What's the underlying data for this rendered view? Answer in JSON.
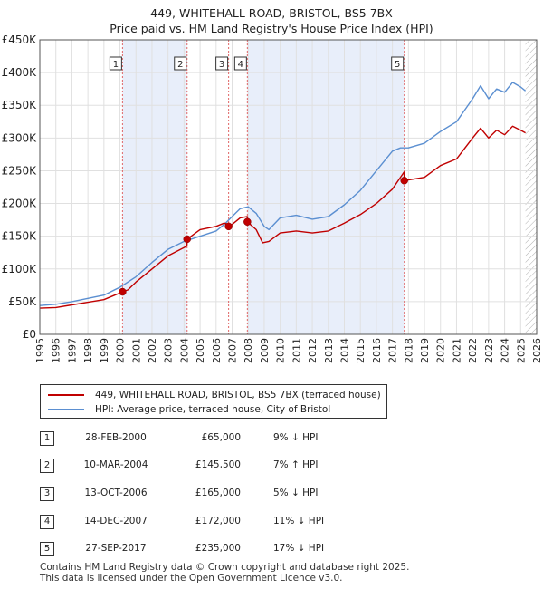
{
  "title_line1": "449, WHITEHALL ROAD, BRISTOL, BS5 7BX",
  "title_line2": "Price paid vs. HM Land Registry's House Price Index (HPI)",
  "colors": {
    "property": "#c00000",
    "hpi": "#5b8fd1",
    "shade": "#e8eefa",
    "grid": "#e0e0e0",
    "vline": "#e06666"
  },
  "legend": {
    "property_label": "449, WHITEHALL ROAD, BRISTOL, BS5 7BX (terraced house)",
    "hpi_label": "HPI: Average price, terraced house, City of Bristol"
  },
  "transactions": [
    {
      "num": "1",
      "date": "28-FEB-2000",
      "price": "£65,000",
      "hpi": "9% ↓ HPI"
    },
    {
      "num": "2",
      "date": "10-MAR-2004",
      "price": "£145,500",
      "hpi": "7% ↑ HPI"
    },
    {
      "num": "3",
      "date": "13-OCT-2006",
      "price": "£165,000",
      "hpi": "5% ↓ HPI"
    },
    {
      "num": "4",
      "date": "14-DEC-2007",
      "price": "£172,000",
      "hpi": "11% ↓ HPI"
    },
    {
      "num": "5",
      "date": "27-SEP-2017",
      "price": "£235,000",
      "hpi": "17% ↓ HPI"
    }
  ],
  "footer_line1": "Contains HM Land Registry data © Crown copyright and database right 2025.",
  "footer_line2": "This data is licensed under the Open Government Licence v3.0.",
  "chart_data": {
    "type": "line",
    "title": "449, WHITEHALL ROAD, BRISTOL, BS5 7BX",
    "subtitle": "Price paid vs. HM Land Registry's House Price Index (HPI)",
    "xlabel": "",
    "ylabel": "",
    "xlim": [
      1995,
      2026
    ],
    "ylim": [
      0,
      450000
    ],
    "yticks": [
      0,
      50000,
      100000,
      150000,
      200000,
      250000,
      300000,
      350000,
      400000,
      450000
    ],
    "ytick_labels": [
      "£0",
      "£50K",
      "£100K",
      "£150K",
      "£200K",
      "£250K",
      "£300K",
      "£350K",
      "£400K",
      "£450K"
    ],
    "xticks": [
      1995,
      1996,
      1997,
      1998,
      1999,
      2000,
      2001,
      2002,
      2003,
      2004,
      2005,
      2006,
      2007,
      2008,
      2009,
      2010,
      2011,
      2012,
      2013,
      2014,
      2015,
      2016,
      2017,
      2018,
      2019,
      2020,
      2021,
      2022,
      2023,
      2024,
      2025,
      2026
    ],
    "grid": true,
    "shaded_ranges": [
      [
        2000.16,
        2004.19
      ],
      [
        2007.95,
        2017.74
      ]
    ],
    "hatched_after": 2025.3,
    "markers": [
      {
        "label": "1",
        "x": 2000.16,
        "y": 65000
      },
      {
        "label": "2",
        "x": 2004.19,
        "y": 145500
      },
      {
        "label": "3",
        "x": 2006.78,
        "y": 165000
      },
      {
        "label": "4",
        "x": 2007.95,
        "y": 172000
      },
      {
        "label": "5",
        "x": 2017.74,
        "y": 235000
      }
    ],
    "series": [
      {
        "name": "449, WHITEHALL ROAD, BRISTOL, BS5 7BX (terraced house)",
        "x": [
          1995,
          1996,
          1997,
          1998,
          1999,
          2000.16,
          2000.5,
          2001,
          2002,
          2003,
          2004.18,
          2004.19,
          2005,
          2006,
          2006.5,
          2006.77,
          2006.78,
          2007,
          2007.5,
          2007.94,
          2007.95,
          2008.5,
          2008.9,
          2009.3,
          2010,
          2011,
          2012,
          2013,
          2014,
          2015,
          2016,
          2017,
          2017.73,
          2017.74,
          2018,
          2019,
          2020,
          2021,
          2022,
          2022.5,
          2023,
          2023.5,
          2024,
          2024.5,
          2025,
          2025.3
        ],
        "values": [
          40000,
          41000,
          45000,
          49000,
          53000,
          65000,
          68000,
          80000,
          100000,
          120000,
          135000,
          145500,
          160000,
          165000,
          170000,
          168000,
          165000,
          168000,
          178000,
          180000,
          172000,
          160000,
          140000,
          142000,
          155000,
          158000,
          155000,
          158000,
          170000,
          183000,
          200000,
          222000,
          248000,
          235000,
          236000,
          240000,
          258000,
          268000,
          300000,
          315000,
          300000,
          312000,
          305000,
          318000,
          312000,
          308000
        ]
      },
      {
        "name": "HPI: Average price, terraced house, City of Bristol",
        "x": [
          1995,
          1996,
          1997,
          1998,
          1999,
          2000,
          2001,
          2002,
          2003,
          2004,
          2005,
          2006,
          2006.5,
          2007,
          2007.5,
          2008,
          2008.5,
          2009,
          2009.3,
          2010,
          2011,
          2012,
          2013,
          2014,
          2015,
          2016,
          2017,
          2017.5,
          2018,
          2019,
          2020,
          2021,
          2022,
          2022.5,
          2023,
          2023.5,
          2024,
          2024.5,
          2025,
          2025.3
        ],
        "values": [
          44000,
          46000,
          50000,
          55000,
          60000,
          72000,
          88000,
          110000,
          130000,
          142000,
          150000,
          158000,
          168000,
          180000,
          192000,
          195000,
          185000,
          165000,
          160000,
          178000,
          182000,
          176000,
          180000,
          198000,
          220000,
          250000,
          280000,
          285000,
          285000,
          292000,
          310000,
          325000,
          360000,
          380000,
          360000,
          375000,
          370000,
          385000,
          378000,
          372000
        ]
      }
    ]
  }
}
